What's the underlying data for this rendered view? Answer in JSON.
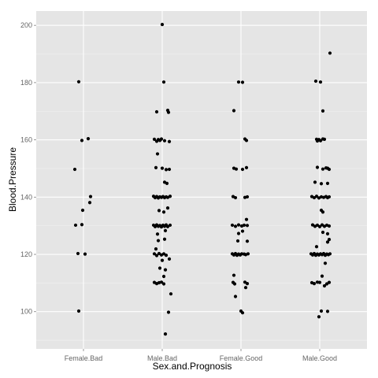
{
  "chart_data": {
    "type": "scatter",
    "title": "",
    "xlabel": "Sex.and.Prognosis",
    "ylabel": "Blood.Pressure",
    "categories": [
      "Female.Bad",
      "Male.Bad",
      "Female.Good",
      "Male.Good"
    ],
    "ylim": [
      87,
      205
    ],
    "yticks": [
      100,
      120,
      140,
      160,
      180,
      200
    ],
    "grid": true,
    "background": "#e5e5e5",
    "grid_color": "#ffffff",
    "point_color": "#000000",
    "series": [
      {
        "category": "Female.Bad",
        "points": [
          [
            -0.06,
            180.3
          ],
          [
            -0.02,
            159.8
          ],
          [
            0.06,
            160.4
          ],
          [
            -0.11,
            149.7
          ],
          [
            0.09,
            140.2
          ],
          [
            0.08,
            138.1
          ],
          [
            -0.01,
            135.4
          ],
          [
            -0.1,
            130.2
          ],
          [
            -0.02,
            130.4
          ],
          [
            -0.07,
            120.3
          ],
          [
            0.02,
            120.1
          ],
          [
            -0.06,
            100.2
          ]
        ]
      },
      {
        "category": "Male.Bad",
        "points": [
          [
            0.0,
            200.3
          ],
          [
            0.02,
            180.2
          ],
          [
            -0.07,
            169.8
          ],
          [
            0.07,
            170.3
          ],
          [
            0.08,
            169.6
          ],
          [
            -0.1,
            160.2
          ],
          [
            -0.07,
            159.5
          ],
          [
            -0.05,
            160.1
          ],
          [
            -0.03,
            159.8
          ],
          [
            -0.01,
            160.3
          ],
          [
            0.03,
            159.7
          ],
          [
            0.09,
            159.4
          ],
          [
            -0.06,
            155.1
          ],
          [
            -0.08,
            150.3
          ],
          [
            0.0,
            150.1
          ],
          [
            0.05,
            149.6
          ],
          [
            0.09,
            149.7
          ],
          [
            0.03,
            145.2
          ],
          [
            0.06,
            144.8
          ],
          [
            -0.11,
            140.3
          ],
          [
            -0.09,
            139.8
          ],
          [
            -0.07,
            140.2
          ],
          [
            -0.05,
            139.7
          ],
          [
            -0.03,
            140.1
          ],
          [
            -0.01,
            139.9
          ],
          [
            0.01,
            140.2
          ],
          [
            0.03,
            139.8
          ],
          [
            0.05,
            140.1
          ],
          [
            0.07,
            139.9
          ],
          [
            0.1,
            140.3
          ],
          [
            -0.04,
            135.3
          ],
          [
            0.02,
            134.8
          ],
          [
            0.07,
            136.2
          ],
          [
            -0.11,
            130.2
          ],
          [
            -0.09,
            129.7
          ],
          [
            -0.07,
            130.3
          ],
          [
            -0.05,
            129.8
          ],
          [
            -0.03,
            130.1
          ],
          [
            -0.01,
            129.6
          ],
          [
            0.01,
            130.2
          ],
          [
            0.03,
            129.8
          ],
          [
            0.05,
            130.3
          ],
          [
            0.07,
            129.7
          ],
          [
            0.1,
            130.2
          ],
          [
            -0.06,
            127.1
          ],
          [
            0.04,
            128.3
          ],
          [
            -0.05,
            124.8
          ],
          [
            0.03,
            125.3
          ],
          [
            -0.08,
            121.9
          ],
          [
            -0.1,
            120.2
          ],
          [
            -0.07,
            119.6
          ],
          [
            -0.04,
            120.3
          ],
          [
            -0.01,
            119.8
          ],
          [
            0.02,
            120.2
          ],
          [
            0.05,
            119.7
          ],
          [
            0.09,
            118.4
          ],
          [
            0.0,
            117.9
          ],
          [
            -0.03,
            115.2
          ],
          [
            0.04,
            114.6
          ],
          [
            0.02,
            112.3
          ],
          [
            -0.1,
            110.2
          ],
          [
            -0.07,
            109.8
          ],
          [
            -0.04,
            110.1
          ],
          [
            -0.01,
            110.3
          ],
          [
            0.02,
            109.7
          ],
          [
            0.11,
            106.2
          ],
          [
            0.08,
            99.8
          ],
          [
            0.04,
            92.2
          ]
        ]
      },
      {
        "category": "Female.Good",
        "points": [
          [
            -0.03,
            180.2
          ],
          [
            0.02,
            180.1
          ],
          [
            -0.09,
            170.2
          ],
          [
            0.05,
            160.3
          ],
          [
            0.07,
            159.8
          ],
          [
            -0.09,
            150.1
          ],
          [
            -0.06,
            149.8
          ],
          [
            0.02,
            149.7
          ],
          [
            0.07,
            150.3
          ],
          [
            -0.1,
            140.2
          ],
          [
            -0.07,
            139.8
          ],
          [
            0.05,
            139.9
          ],
          [
            0.08,
            140.1
          ],
          [
            0.07,
            132.2
          ],
          [
            -0.11,
            130.2
          ],
          [
            -0.07,
            129.8
          ],
          [
            -0.03,
            130.3
          ],
          [
            0.01,
            129.9
          ],
          [
            0.04,
            130.2
          ],
          [
            0.08,
            130.1
          ],
          [
            -0.03,
            127.3
          ],
          [
            0.02,
            128.1
          ],
          [
            -0.04,
            124.7
          ],
          [
            0.08,
            124.6
          ],
          [
            -0.11,
            120.2
          ],
          [
            -0.09,
            119.8
          ],
          [
            -0.07,
            120.3
          ],
          [
            -0.05,
            119.7
          ],
          [
            -0.03,
            120.1
          ],
          [
            -0.01,
            119.8
          ],
          [
            0.01,
            120.2
          ],
          [
            0.04,
            120.1
          ],
          [
            0.06,
            119.9
          ],
          [
            0.09,
            120.2
          ],
          [
            -0.09,
            112.7
          ],
          [
            -0.1,
            110.2
          ],
          [
            -0.08,
            109.7
          ],
          [
            0.05,
            110.3
          ],
          [
            0.08,
            109.8
          ],
          [
            0.06,
            108.4
          ],
          [
            -0.07,
            105.3
          ],
          [
            0.0,
            100.2
          ],
          [
            0.02,
            99.6
          ]
        ]
      },
      {
        "category": "Male.Good",
        "points": [
          [
            0.13,
            190.3
          ],
          [
            -0.05,
            180.5
          ],
          [
            0.01,
            180.2
          ],
          [
            0.04,
            170.1
          ],
          [
            -0.04,
            160.2
          ],
          [
            -0.03,
            159.6
          ],
          [
            -0.01,
            160.1
          ],
          [
            0.01,
            159.7
          ],
          [
            0.04,
            160.3
          ],
          [
            0.06,
            160.2
          ],
          [
            -0.03,
            150.4
          ],
          [
            0.04,
            149.8
          ],
          [
            0.08,
            150.2
          ],
          [
            0.1,
            150.1
          ],
          [
            0.12,
            149.7
          ],
          [
            -0.06,
            145.2
          ],
          [
            0.02,
            144.7
          ],
          [
            0.1,
            144.8
          ],
          [
            -0.1,
            140.2
          ],
          [
            -0.07,
            139.8
          ],
          [
            -0.04,
            140.3
          ],
          [
            -0.01,
            139.7
          ],
          [
            0.02,
            140.1
          ],
          [
            0.05,
            139.9
          ],
          [
            0.08,
            140.2
          ],
          [
            0.1,
            139.8
          ],
          [
            0.12,
            140.1
          ],
          [
            0.02,
            135.4
          ],
          [
            0.04,
            134.8
          ],
          [
            -0.09,
            130.3
          ],
          [
            -0.06,
            129.8
          ],
          [
            -0.03,
            130.2
          ],
          [
            0.0,
            129.7
          ],
          [
            0.03,
            130.3
          ],
          [
            0.06,
            129.8
          ],
          [
            0.09,
            130.2
          ],
          [
            0.12,
            129.9
          ],
          [
            0.04,
            127.7
          ],
          [
            0.1,
            127.2
          ],
          [
            0.12,
            125.2
          ],
          [
            0.1,
            124.3
          ],
          [
            -0.04,
            122.7
          ],
          [
            -0.11,
            120.2
          ],
          [
            -0.09,
            119.8
          ],
          [
            -0.07,
            120.3
          ],
          [
            -0.05,
            119.7
          ],
          [
            -0.03,
            120.1
          ],
          [
            -0.01,
            119.8
          ],
          [
            0.01,
            120.2
          ],
          [
            0.03,
            119.9
          ],
          [
            0.05,
            120.3
          ],
          [
            0.07,
            119.7
          ],
          [
            0.09,
            120.1
          ],
          [
            0.11,
            119.9
          ],
          [
            0.13,
            120.2
          ],
          [
            0.07,
            116.9
          ],
          [
            0.03,
            112.4
          ],
          [
            -0.1,
            110.1
          ],
          [
            -0.07,
            109.8
          ],
          [
            -0.03,
            110.3
          ],
          [
            0.0,
            110.2
          ],
          [
            0.09,
            109.7
          ],
          [
            0.12,
            110.2
          ],
          [
            0.06,
            109.0
          ],
          [
            0.02,
            100.2
          ],
          [
            0.1,
            100.1
          ],
          [
            -0.01,
            98.2
          ]
        ]
      }
    ]
  }
}
